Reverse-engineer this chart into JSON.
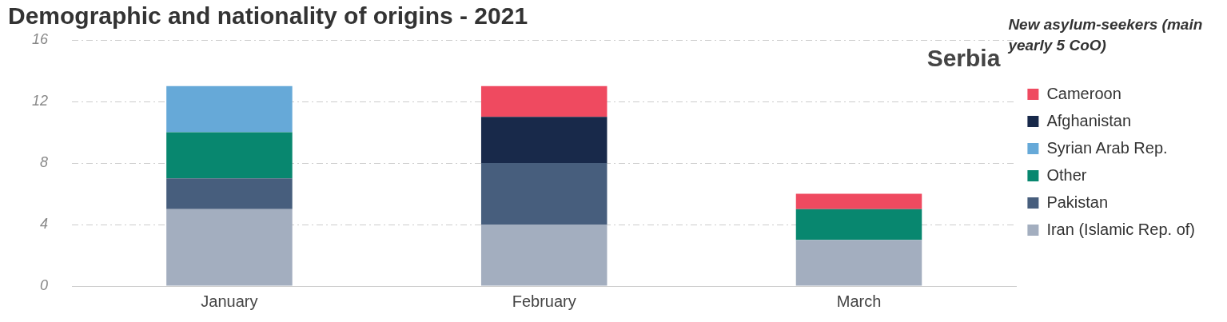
{
  "chart_data": {
    "type": "bar",
    "title": "Demographic and nationality of origins - 2021",
    "legend_title": "New asylum-seekers (main yearly 5 CoO)",
    "annotations": [
      "Serbia"
    ],
    "categories": [
      "January",
      "February",
      "March"
    ],
    "stacked": true,
    "ylim": [
      0,
      16
    ],
    "yticks": [
      0,
      4,
      8,
      12,
      16
    ],
    "grid": "y",
    "legend": "right",
    "series": [
      {
        "name": "Iran (Islamic Rep. of)",
        "color": "#a3aebf",
        "values": [
          5,
          4,
          3
        ]
      },
      {
        "name": "Pakistan",
        "color": "#475e7d",
        "values": [
          2,
          4,
          null
        ]
      },
      {
        "name": "Other",
        "color": "#08876f",
        "values": [
          3,
          null,
          2
        ]
      },
      {
        "name": "Syrian Arab Rep.",
        "color": "#66a9d8",
        "values": [
          3,
          null,
          null
        ]
      },
      {
        "name": "Afghanistan",
        "color": "#18294a",
        "values": [
          null,
          3,
          null
        ]
      },
      {
        "name": "Cameroon",
        "color": "#ef4a60",
        "values": [
          null,
          2,
          1
        ]
      }
    ]
  }
}
